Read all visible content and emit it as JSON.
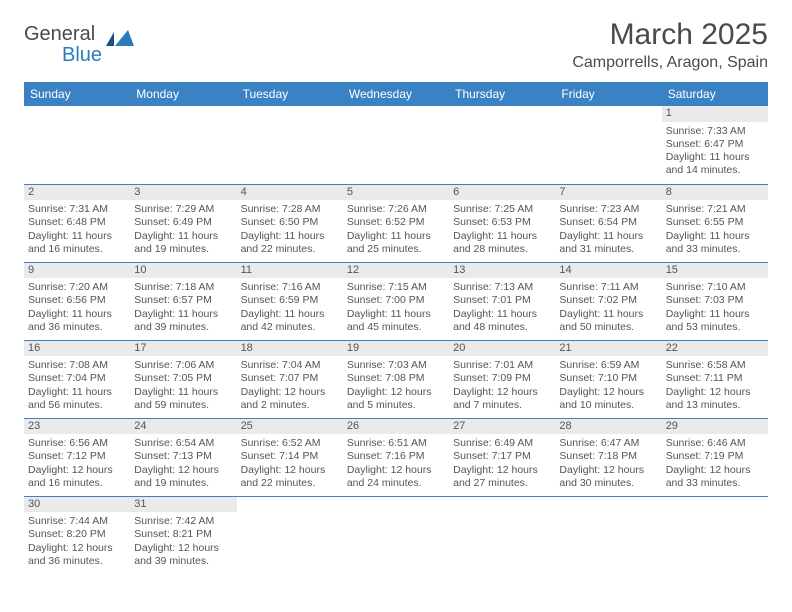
{
  "brand": {
    "name1": "General",
    "name2": "Blue"
  },
  "header": {
    "month_title": "March 2025",
    "location": "Camporrells, Aragon, Spain"
  },
  "colors": {
    "header_bg": "#3b82c4",
    "header_text": "#ffffff",
    "daynum_bg": "#eaeaea",
    "border": "#3b82c4",
    "text": "#555555"
  },
  "weekdays": [
    "Sunday",
    "Monday",
    "Tuesday",
    "Wednesday",
    "Thursday",
    "Friday",
    "Saturday"
  ],
  "weeks": [
    [
      {
        "empty": true
      },
      {
        "empty": true
      },
      {
        "empty": true
      },
      {
        "empty": true
      },
      {
        "empty": true
      },
      {
        "empty": true
      },
      {
        "day": "1",
        "sunrise": "Sunrise: 7:33 AM",
        "sunset": "Sunset: 6:47 PM",
        "daylight1": "Daylight: 11 hours",
        "daylight2": "and 14 minutes."
      }
    ],
    [
      {
        "day": "2",
        "sunrise": "Sunrise: 7:31 AM",
        "sunset": "Sunset: 6:48 PM",
        "daylight1": "Daylight: 11 hours",
        "daylight2": "and 16 minutes."
      },
      {
        "day": "3",
        "sunrise": "Sunrise: 7:29 AM",
        "sunset": "Sunset: 6:49 PM",
        "daylight1": "Daylight: 11 hours",
        "daylight2": "and 19 minutes."
      },
      {
        "day": "4",
        "sunrise": "Sunrise: 7:28 AM",
        "sunset": "Sunset: 6:50 PM",
        "daylight1": "Daylight: 11 hours",
        "daylight2": "and 22 minutes."
      },
      {
        "day": "5",
        "sunrise": "Sunrise: 7:26 AM",
        "sunset": "Sunset: 6:52 PM",
        "daylight1": "Daylight: 11 hours",
        "daylight2": "and 25 minutes."
      },
      {
        "day": "6",
        "sunrise": "Sunrise: 7:25 AM",
        "sunset": "Sunset: 6:53 PM",
        "daylight1": "Daylight: 11 hours",
        "daylight2": "and 28 minutes."
      },
      {
        "day": "7",
        "sunrise": "Sunrise: 7:23 AM",
        "sunset": "Sunset: 6:54 PM",
        "daylight1": "Daylight: 11 hours",
        "daylight2": "and 31 minutes."
      },
      {
        "day": "8",
        "sunrise": "Sunrise: 7:21 AM",
        "sunset": "Sunset: 6:55 PM",
        "daylight1": "Daylight: 11 hours",
        "daylight2": "and 33 minutes."
      }
    ],
    [
      {
        "day": "9",
        "sunrise": "Sunrise: 7:20 AM",
        "sunset": "Sunset: 6:56 PM",
        "daylight1": "Daylight: 11 hours",
        "daylight2": "and 36 minutes."
      },
      {
        "day": "10",
        "sunrise": "Sunrise: 7:18 AM",
        "sunset": "Sunset: 6:57 PM",
        "daylight1": "Daylight: 11 hours",
        "daylight2": "and 39 minutes."
      },
      {
        "day": "11",
        "sunrise": "Sunrise: 7:16 AM",
        "sunset": "Sunset: 6:59 PM",
        "daylight1": "Daylight: 11 hours",
        "daylight2": "and 42 minutes."
      },
      {
        "day": "12",
        "sunrise": "Sunrise: 7:15 AM",
        "sunset": "Sunset: 7:00 PM",
        "daylight1": "Daylight: 11 hours",
        "daylight2": "and 45 minutes."
      },
      {
        "day": "13",
        "sunrise": "Sunrise: 7:13 AM",
        "sunset": "Sunset: 7:01 PM",
        "daylight1": "Daylight: 11 hours",
        "daylight2": "and 48 minutes."
      },
      {
        "day": "14",
        "sunrise": "Sunrise: 7:11 AM",
        "sunset": "Sunset: 7:02 PM",
        "daylight1": "Daylight: 11 hours",
        "daylight2": "and 50 minutes."
      },
      {
        "day": "15",
        "sunrise": "Sunrise: 7:10 AM",
        "sunset": "Sunset: 7:03 PM",
        "daylight1": "Daylight: 11 hours",
        "daylight2": "and 53 minutes."
      }
    ],
    [
      {
        "day": "16",
        "sunrise": "Sunrise: 7:08 AM",
        "sunset": "Sunset: 7:04 PM",
        "daylight1": "Daylight: 11 hours",
        "daylight2": "and 56 minutes."
      },
      {
        "day": "17",
        "sunrise": "Sunrise: 7:06 AM",
        "sunset": "Sunset: 7:05 PM",
        "daylight1": "Daylight: 11 hours",
        "daylight2": "and 59 minutes."
      },
      {
        "day": "18",
        "sunrise": "Sunrise: 7:04 AM",
        "sunset": "Sunset: 7:07 PM",
        "daylight1": "Daylight: 12 hours",
        "daylight2": "and 2 minutes."
      },
      {
        "day": "19",
        "sunrise": "Sunrise: 7:03 AM",
        "sunset": "Sunset: 7:08 PM",
        "daylight1": "Daylight: 12 hours",
        "daylight2": "and 5 minutes."
      },
      {
        "day": "20",
        "sunrise": "Sunrise: 7:01 AM",
        "sunset": "Sunset: 7:09 PM",
        "daylight1": "Daylight: 12 hours",
        "daylight2": "and 7 minutes."
      },
      {
        "day": "21",
        "sunrise": "Sunrise: 6:59 AM",
        "sunset": "Sunset: 7:10 PM",
        "daylight1": "Daylight: 12 hours",
        "daylight2": "and 10 minutes."
      },
      {
        "day": "22",
        "sunrise": "Sunrise: 6:58 AM",
        "sunset": "Sunset: 7:11 PM",
        "daylight1": "Daylight: 12 hours",
        "daylight2": "and 13 minutes."
      }
    ],
    [
      {
        "day": "23",
        "sunrise": "Sunrise: 6:56 AM",
        "sunset": "Sunset: 7:12 PM",
        "daylight1": "Daylight: 12 hours",
        "daylight2": "and 16 minutes."
      },
      {
        "day": "24",
        "sunrise": "Sunrise: 6:54 AM",
        "sunset": "Sunset: 7:13 PM",
        "daylight1": "Daylight: 12 hours",
        "daylight2": "and 19 minutes."
      },
      {
        "day": "25",
        "sunrise": "Sunrise: 6:52 AM",
        "sunset": "Sunset: 7:14 PM",
        "daylight1": "Daylight: 12 hours",
        "daylight2": "and 22 minutes."
      },
      {
        "day": "26",
        "sunrise": "Sunrise: 6:51 AM",
        "sunset": "Sunset: 7:16 PM",
        "daylight1": "Daylight: 12 hours",
        "daylight2": "and 24 minutes."
      },
      {
        "day": "27",
        "sunrise": "Sunrise: 6:49 AM",
        "sunset": "Sunset: 7:17 PM",
        "daylight1": "Daylight: 12 hours",
        "daylight2": "and 27 minutes."
      },
      {
        "day": "28",
        "sunrise": "Sunrise: 6:47 AM",
        "sunset": "Sunset: 7:18 PM",
        "daylight1": "Daylight: 12 hours",
        "daylight2": "and 30 minutes."
      },
      {
        "day": "29",
        "sunrise": "Sunrise: 6:46 AM",
        "sunset": "Sunset: 7:19 PM",
        "daylight1": "Daylight: 12 hours",
        "daylight2": "and 33 minutes."
      }
    ],
    [
      {
        "day": "30",
        "sunrise": "Sunrise: 7:44 AM",
        "sunset": "Sunset: 8:20 PM",
        "daylight1": "Daylight: 12 hours",
        "daylight2": "and 36 minutes."
      },
      {
        "day": "31",
        "sunrise": "Sunrise: 7:42 AM",
        "sunset": "Sunset: 8:21 PM",
        "daylight1": "Daylight: 12 hours",
        "daylight2": "and 39 minutes."
      },
      {
        "empty": true
      },
      {
        "empty": true
      },
      {
        "empty": true
      },
      {
        "empty": true
      },
      {
        "empty": true
      }
    ]
  ]
}
